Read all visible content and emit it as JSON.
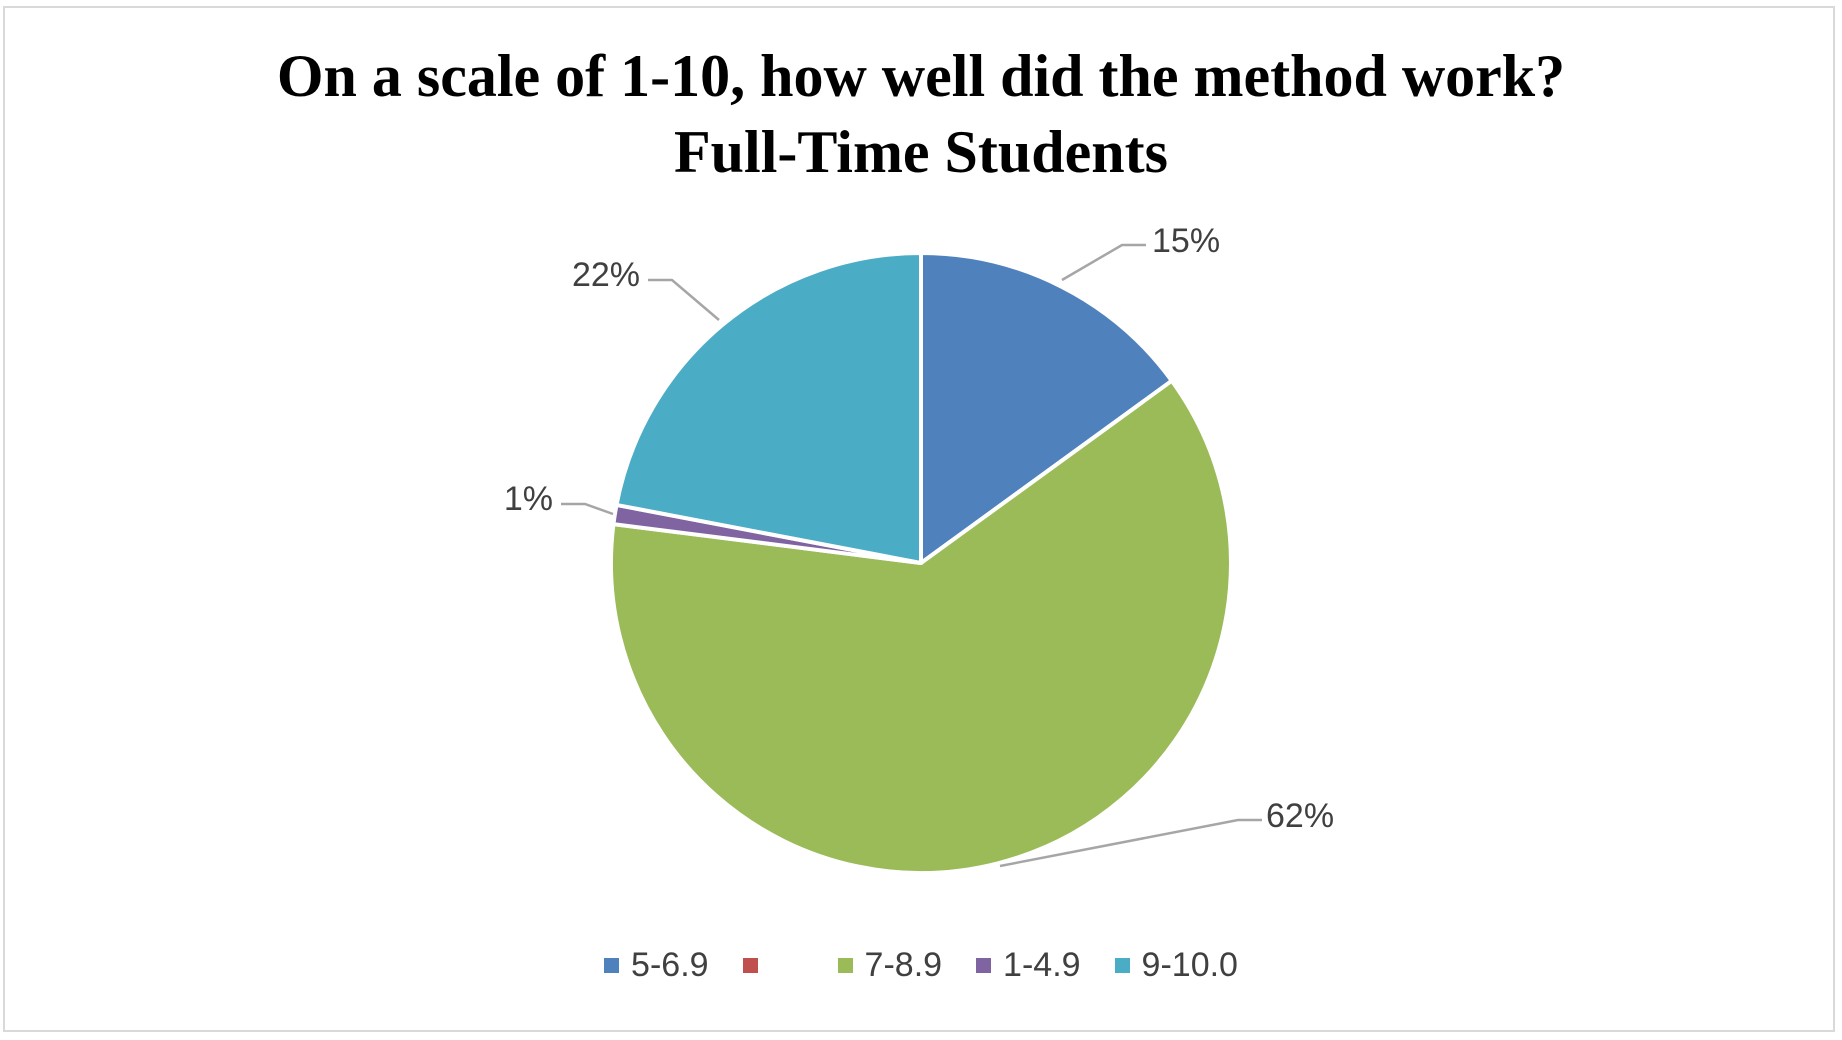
{
  "chart_data": {
    "type": "pie",
    "title": [
      "On a scale of 1-10, how well did the method work?",
      "Full-Time Students"
    ],
    "legend_position": "bottom",
    "slices": [
      {
        "name": "5-6.9",
        "value": 15,
        "label": "15%",
        "color": "#4f81bd"
      },
      {
        "name": "",
        "value": 0,
        "label": "",
        "color": "#c0504d"
      },
      {
        "name": "7-8.9",
        "value": 62,
        "label": "62%",
        "color": "#9bbb59"
      },
      {
        "name": "1-4.9",
        "value": 1,
        "label": "1%",
        "color": "#8064a2"
      },
      {
        "name": "9-10.0",
        "value": 22,
        "label": "22%",
        "color": "#4bacc6"
      }
    ]
  }
}
